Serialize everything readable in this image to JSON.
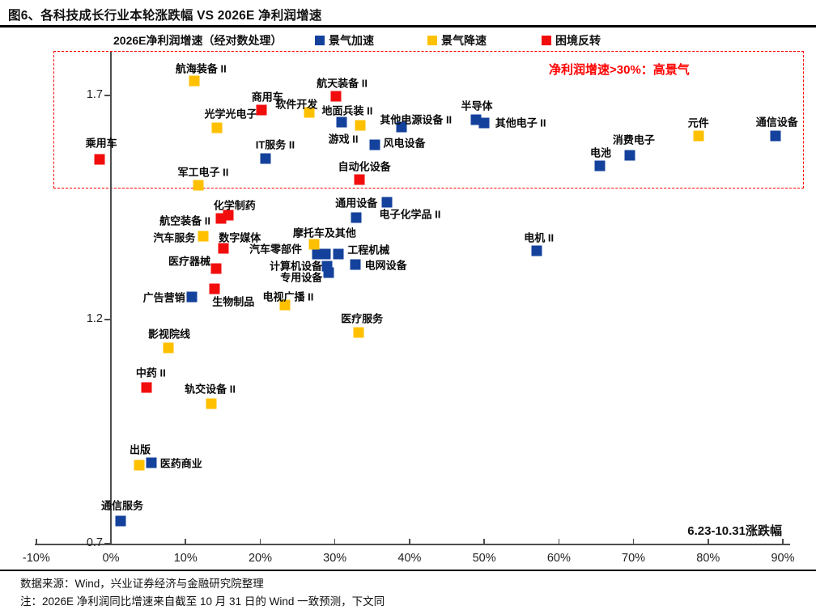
{
  "header": {
    "title": "图6、各科技成长行业本轮涨跌幅 VS 2026E 净利润增速"
  },
  "legend": {
    "prefix": "2026E净利润增速（经对数处理）",
    "items": [
      {
        "label": "景气加速",
        "color": "#14419C"
      },
      {
        "label": "景气降速",
        "color": "#FFC000"
      },
      {
        "label": "困境反转",
        "color": "#F20D0D"
      }
    ]
  },
  "chart_data": {
    "type": "scatter",
    "title": "各科技成长行业本轮涨跌幅 VS 2026E 净利润增速",
    "xlabel": "6.23-10.31涨跌幅",
    "ylabel": "2026E净利润增速（经对数处理）",
    "xlim": [
      -10,
      90
    ],
    "ylim": [
      0.7,
      1.8
    ],
    "x_ticks": [
      -10,
      0,
      10,
      20,
      30,
      40,
      50,
      60,
      70,
      80,
      90
    ],
    "x_tick_labels": [
      "-10%",
      "0%",
      "10%",
      "20%",
      "30%",
      "40%",
      "50%",
      "60%",
      "70%",
      "80%",
      "90%"
    ],
    "y_ticks": [
      "1.7",
      "1.2",
      "0.7"
    ],
    "y_tick_values": [
      1.7,
      1.2,
      0.7
    ],
    "grid": false,
    "annotation": {
      "text": "净利润增速>30%：高景气",
      "color": "#ff0000"
    },
    "series": [
      {
        "name": "景气加速",
        "color": "#14419C",
        "points": [
          {
            "name": "通信服务",
            "x": 1.3,
            "y": 0.75,
            "dx": 2,
            "dy": -20
          },
          {
            "name": "医药商业",
            "x": 5.4,
            "y": 0.88,
            "dx": 37,
            "dy": 0
          },
          {
            "name": "广告营销",
            "x": 10.8,
            "y": 1.25,
            "dx": -34,
            "dy": 0
          },
          {
            "name": "IT服务 II",
            "x": 20.7,
            "y": 1.56,
            "dx": 12,
            "dy": -18
          },
          {
            "name": "地面兵装 II",
            "x": 30.9,
            "y": 1.64,
            "dx": 7,
            "dy": -15
          },
          {
            "name": "其他电源设备 II",
            "x": 38.9,
            "y": 1.63,
            "dx": 18,
            "dy": -10
          },
          {
            "name": "风电设备",
            "x": 35.3,
            "y": 1.59,
            "dx": 37,
            "dy": -3
          },
          {
            "name": "半导体",
            "x": 48.9,
            "y": 1.645,
            "dx": 1,
            "dy": -18
          },
          {
            "name": "其他电子 II",
            "x": 50.0,
            "y": 1.638,
            "dx": 45,
            "dy": -1
          },
          {
            "name": "电池",
            "x": 65.5,
            "y": 1.543,
            "dx": 1,
            "dy": -17
          },
          {
            "name": "消费电子",
            "x": 69.5,
            "y": 1.566,
            "dx": 5,
            "dy": -20
          },
          {
            "name": "通信设备",
            "x": 89.0,
            "y": 1.61,
            "dx": 2,
            "dy": -18
          },
          {
            "name": "汽车零部件",
            "x": 27.6,
            "y": 1.346,
            "dx": -51,
            "dy": -7
          },
          {
            "name": "",
            "x": 28.7,
            "y": 1.346,
            "dx": 0,
            "dy": 0
          },
          {
            "name": "工程机械",
            "x": 30.5,
            "y": 1.346,
            "dx": 37,
            "dy": -6
          },
          {
            "name": "计算机设备",
            "x": 29.0,
            "y": 1.319,
            "dx": -39,
            "dy": -1
          },
          {
            "name": "专用设备",
            "x": 29.2,
            "y": 1.305,
            "dx": -34,
            "dy": 5
          },
          {
            "name": "通用设备",
            "x": 37.0,
            "y": 1.462,
            "dx": -38,
            "dy": 0
          },
          {
            "name": "电子化学品 II",
            "x": 32.9,
            "y": 1.427,
            "dx": 66,
            "dy": -5
          },
          {
            "name": "电网设备",
            "x": 32.7,
            "y": 1.323,
            "dx": 38,
            "dy": 0
          },
          {
            "name": "电机 II",
            "x": 57.0,
            "y": 1.353,
            "dx": 3,
            "dy": -17
          }
        ]
      },
      {
        "name": "景气降速",
        "color": "#FFC000",
        "points": [
          {
            "name": "出版",
            "x": 3.8,
            "y": 0.875,
            "dx": 1,
            "dy": -20
          },
          {
            "name": "影视院线",
            "x": 7.7,
            "y": 1.137,
            "dx": 1,
            "dy": -18
          },
          {
            "name": "轨交设备 II",
            "x": 13.4,
            "y": 1.012,
            "dx": -1,
            "dy": -19
          },
          {
            "name": "汽车服务",
            "x": 12.4,
            "y": 1.386,
            "dx": -36,
            "dy": 1
          },
          {
            "name": "航海装备 II",
            "x": 11.2,
            "y": 1.732,
            "dx": 8,
            "dy": -16
          },
          {
            "name": "光学光电子",
            "x": 14.2,
            "y": 1.628,
            "dx": 17,
            "dy": -18
          },
          {
            "name": "军工电子 II",
            "x": 11.7,
            "y": 1.5,
            "dx": 6,
            "dy": -17
          },
          {
            "name": "软件开发",
            "x": 26.6,
            "y": 1.662,
            "dx": -16,
            "dy": -11
          },
          {
            "name": "游戏 II",
            "x": 33.4,
            "y": 1.633,
            "dx": -21,
            "dy": 16
          },
          {
            "name": "摩托车及其他",
            "x": 27.2,
            "y": 1.368,
            "dx": 13,
            "dy": -15
          },
          {
            "name": "电视广播 II",
            "x": 23.3,
            "y": 1.232,
            "dx": 4,
            "dy": -11
          },
          {
            "name": "医疗服务",
            "x": 33.2,
            "y": 1.171,
            "dx": 4,
            "dy": -18
          },
          {
            "name": "元件",
            "x": 78.7,
            "y": 1.61,
            "dx": 0,
            "dy": -17
          }
        ]
      },
      {
        "name": "困境反转",
        "color": "#F20D0D",
        "points": [
          {
            "name": "乘用车",
            "x": -1.5,
            "y": 1.557,
            "dx": 2,
            "dy": -21
          },
          {
            "name": "商用车",
            "x": 20.2,
            "y": 1.667,
            "dx": 7,
            "dy": -17
          },
          {
            "name": "航天装备 II",
            "x": 30.1,
            "y": 1.698,
            "dx": 8,
            "dy": -17
          },
          {
            "name": "自动化设备",
            "x": 33.3,
            "y": 1.512,
            "dx": 6,
            "dy": -17
          },
          {
            "name": "化学制药",
            "x": 15.7,
            "y": 1.433,
            "dx": 8,
            "dy": -13
          },
          {
            "name": "航空装备 II",
            "x": 14.7,
            "y": 1.426,
            "dx": -44,
            "dy": 2
          },
          {
            "name": "数字媒体",
            "x": 15.1,
            "y": 1.359,
            "dx": 20,
            "dy": -14
          },
          {
            "name": "医疗器械",
            "x": 14.1,
            "y": 1.314,
            "dx": -33,
            "dy": -10
          },
          {
            "name": "生物制品",
            "x": 13.9,
            "y": 1.269,
            "dx": 23,
            "dy": 15
          },
          {
            "name": "中药 II",
            "x": 4.8,
            "y": 1.048,
            "dx": 5,
            "dy": -19
          }
        ]
      }
    ]
  },
  "footer": {
    "source": "数据来源：Wind，兴业证券经济与金融研究院整理",
    "note": "注：2026E 净利润同比增速来自截至 10 月 31 日的 Wind 一致预测，下文同"
  }
}
